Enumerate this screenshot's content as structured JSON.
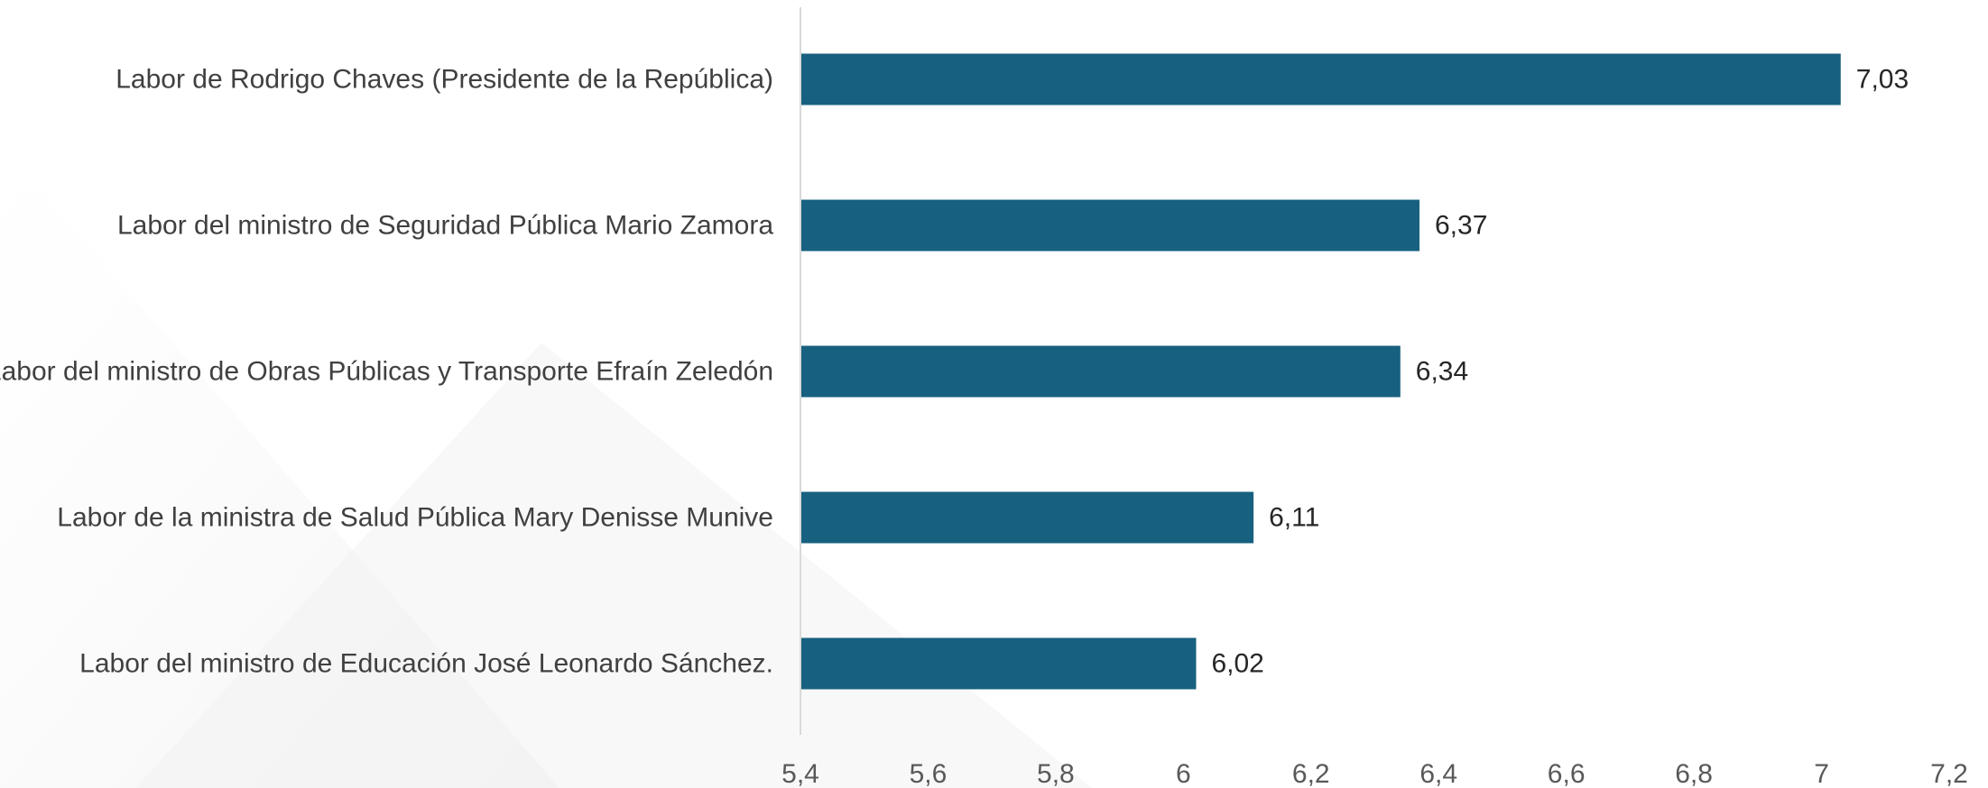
{
  "chart_data": {
    "type": "bar",
    "orientation": "horizontal",
    "title": "",
    "xlabel": "",
    "ylabel": "",
    "categories": [
      "Labor de Rodrigo Chaves (Presidente de la República)",
      "Labor del ministro de Seguridad Pública Mario Zamora",
      "Labor del ministro de Obras Públicas y Transporte Efraín Zeledón",
      "Labor de la ministra de Salud Pública Mary Denisse Munive",
      "Labor del ministro de Educación José Leonardo Sánchez."
    ],
    "values": [
      7.03,
      6.37,
      6.34,
      6.11,
      6.02
    ],
    "value_labels": [
      "7,03",
      "6,37",
      "6,34",
      "6,11",
      "6,02"
    ],
    "xlim": [
      5.4,
      7.2
    ],
    "xticks": [
      5.4,
      5.6,
      5.8,
      6,
      6.2,
      6.4,
      6.6,
      6.8,
      7,
      7.2
    ],
    "xtick_labels": [
      "5,4",
      "5,6",
      "5,8",
      "6",
      "6,2",
      "6,4",
      "6,6",
      "6,8",
      "7",
      "7,2"
    ],
    "grid": false,
    "legend": "none",
    "bar_color": "#17607F",
    "axis_color": "#D9D9D9"
  }
}
